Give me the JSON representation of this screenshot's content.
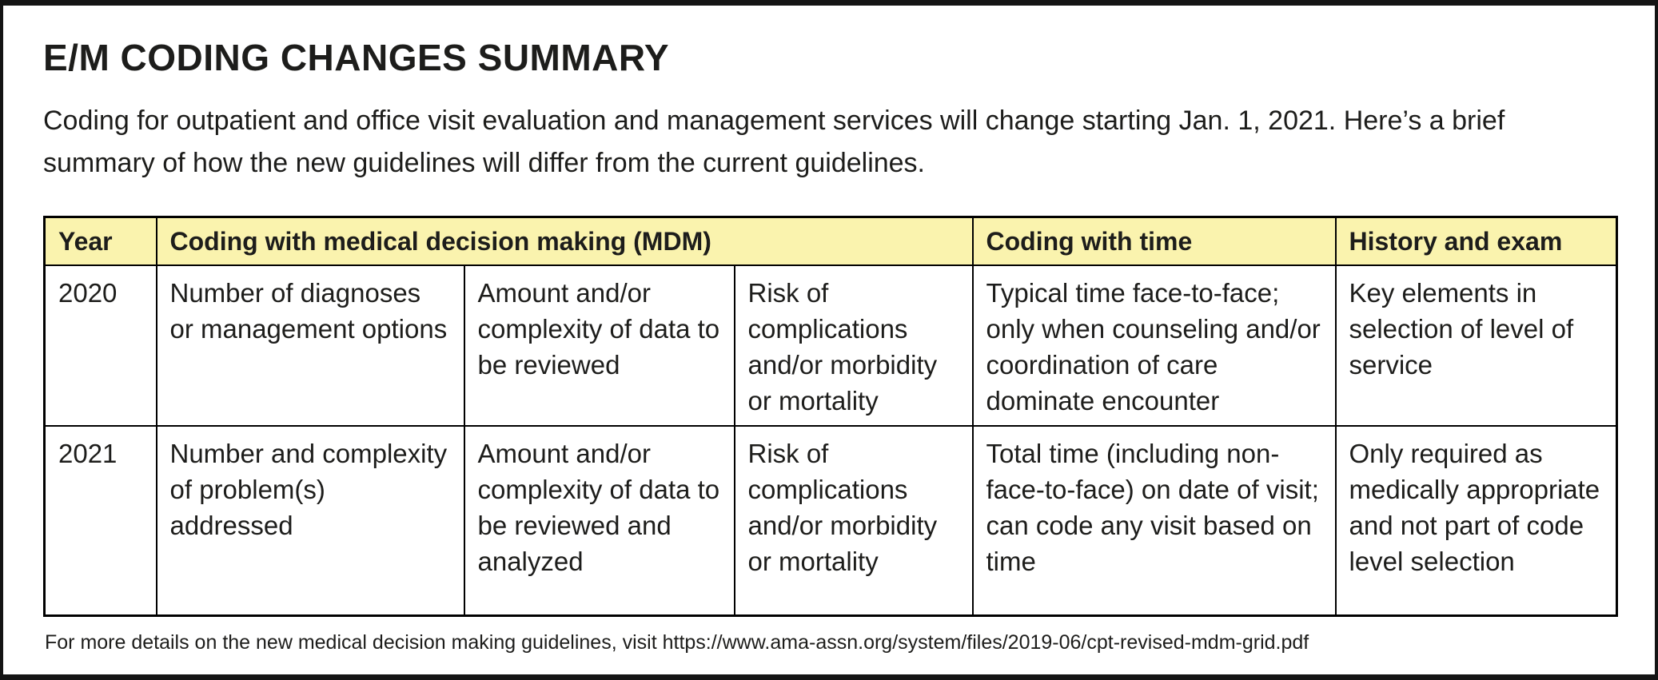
{
  "page": {
    "title": "E/M CODING CHANGES SUMMARY",
    "intro": "Coding for outpatient and office visit evaluation and management services will change starting Jan. 1, 2021. Here’s a brief summary of how the new guidelines will differ from the current guidelines.",
    "footer": "For more details on the new medical decision making guidelines, visit https://www.ama-assn.org/system/files/2019-06/cpt-revised-mdm-grid.pdf"
  },
  "colors": {
    "header_bg": "#faf3ae",
    "table_border": "#000000",
    "frame_border": "#141414",
    "text": "#1d1d1b"
  },
  "table": {
    "headers": {
      "year": "Year",
      "mdm": "Coding with medical decision making (MDM)",
      "time": "Coding with time",
      "history": "History and exam"
    },
    "rows": [
      {
        "year": "2020",
        "mdm1": "Number of diagnoses or management options",
        "mdm2": "Amount and/or complexity of data to be reviewed",
        "mdm3": "Risk of complications and/or morbidity or mortality",
        "time": "Typical time face-to-face; only when counseling and/or coordination of care dominate encounter",
        "history": "Key elements in selection of level of service"
      },
      {
        "year": "2021",
        "mdm1": "Number and complexity of problem(s) addressed",
        "mdm2": "Amount and/or complexity of data to be reviewed and analyzed",
        "mdm3": "Risk of complications and/or morbidity or mortality",
        "time": "Total time (including non-face-to-face) on date of visit; can code any visit based on time",
        "history": "Only required as medically appropriate and not part of code level selection"
      }
    ]
  }
}
